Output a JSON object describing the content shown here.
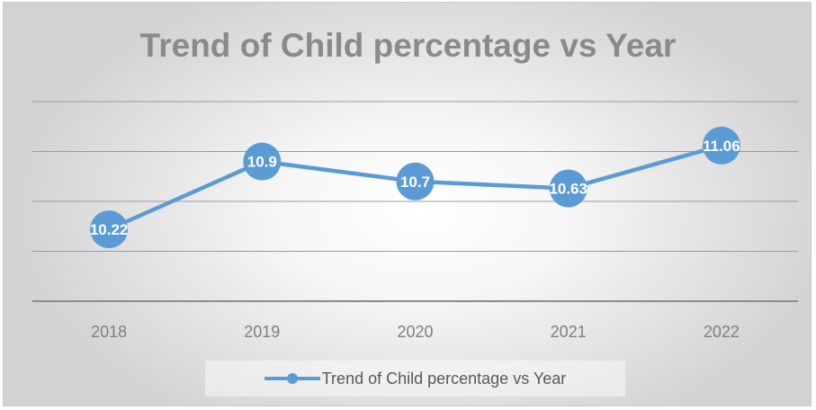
{
  "chart_data": {
    "type": "line",
    "title": "Trend of Child percentage vs Year",
    "categories": [
      "2018",
      "2019",
      "2020",
      "2021",
      "2022"
    ],
    "series": [
      {
        "name": "Trend of Child percentage vs Year",
        "values": [
          10.22,
          10.9,
          10.7,
          10.63,
          11.06
        ],
        "color": "#5b9bd5"
      }
    ],
    "data_labels": [
      "10.22",
      "10.9",
      "10.7",
      "10.63",
      "11.06"
    ],
    "ylim": [
      9.5,
      11.5
    ],
    "y_gridlines": [
      10.0,
      10.5,
      11.0,
      11.5
    ],
    "y_axis_labels_visible": false,
    "grid": true,
    "legend_position": "bottom"
  }
}
